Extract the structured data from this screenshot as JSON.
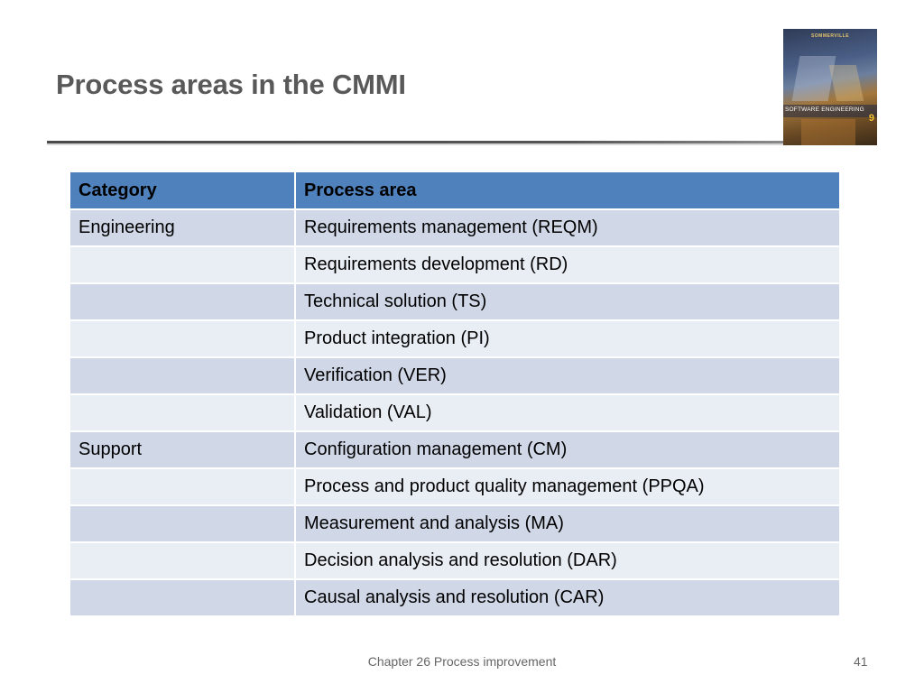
{
  "slide": {
    "title": "Process areas in the CMMI"
  },
  "cover": {
    "author": "SOMMERVILLE",
    "book_title": "SOFTWARE ENGINEERING",
    "edition": "9"
  },
  "table": {
    "headers": [
      "Category",
      "Process area"
    ],
    "rows": [
      [
        "Engineering",
        "Requirements management (REQM)"
      ],
      [
        "",
        "Requirements development (RD)"
      ],
      [
        "",
        "Technical solution (TS)"
      ],
      [
        "",
        "Product integration (PI)"
      ],
      [
        "",
        "Verification (VER)"
      ],
      [
        "",
        "Validation (VAL)"
      ],
      [
        "Support",
        "Configuration management (CM)"
      ],
      [
        "",
        "Process and product quality management (PPQA)"
      ],
      [
        "",
        "Measurement and analysis (MA)"
      ],
      [
        "",
        "Decision analysis and resolution (DAR)"
      ],
      [
        "",
        "Causal analysis and resolution (CAR)"
      ]
    ]
  },
  "footer": {
    "text": "Chapter 26 Process improvement",
    "page_number": "41"
  },
  "colors": {
    "header_fill": "#4f81bd",
    "row_odd_fill": "#d0d8e8",
    "row_even_fill": "#e9edf4",
    "title_text": "#595959"
  }
}
